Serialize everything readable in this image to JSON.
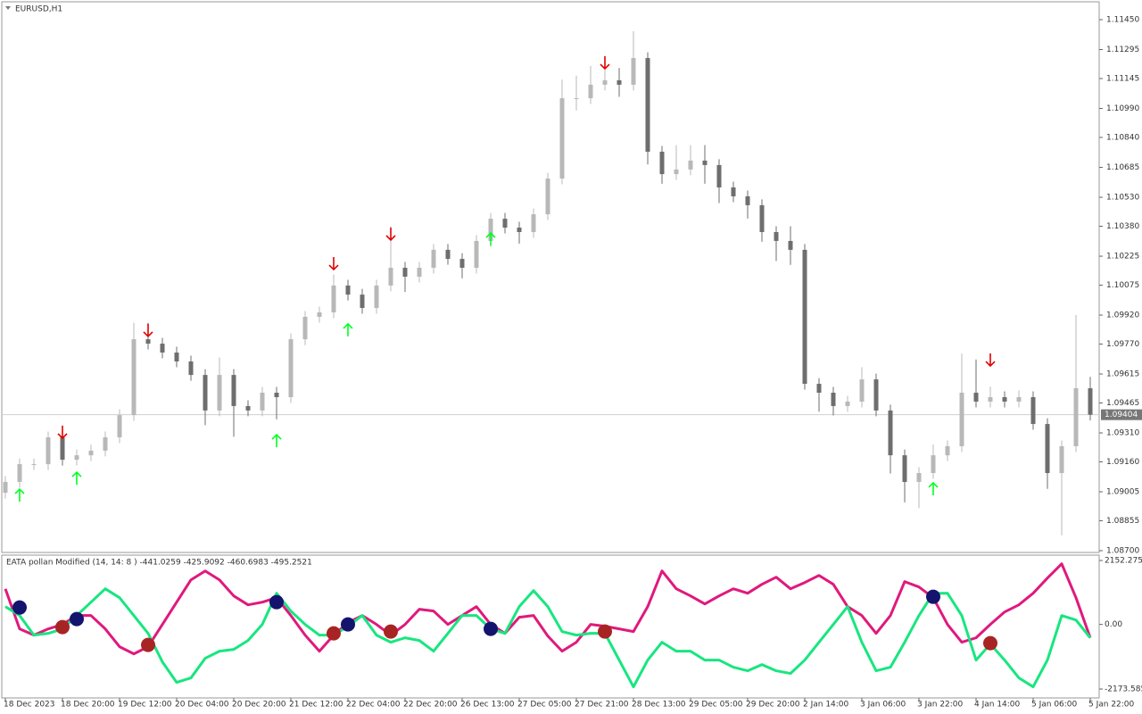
{
  "chart_data": [
    {
      "type": "candlestick",
      "title": "EURUSD,H1",
      "open": [
        1.09,
        1.09056,
        1.09148,
        1.09148,
        1.09287,
        1.09171,
        1.09194,
        1.09218,
        1.09287,
        1.09402,
        1.09795,
        1.09772,
        1.09726,
        1.0968,
        1.0961,
        1.09426,
        1.0961,
        1.09449,
        1.09426,
        1.09518,
        1.09495,
        1.09795,
        1.09911,
        1.09934,
        1.10073,
        1.10026,
        1.09957,
        1.10073,
        1.10165,
        1.10119,
        1.10165,
        1.10258,
        1.10211,
        1.10165,
        1.10304,
        1.10419,
        1.10373,
        1.1035,
        1.10442,
        1.10627,
        1.11043,
        1.11043,
        1.11113,
        1.11136,
        1.11113,
        1.11251,
        1.10766,
        1.1065,
        1.10674,
        1.1072,
        1.10697,
        1.10581,
        1.10535,
        1.10489,
        1.1035,
        1.10304,
        1.10258,
        1.09564,
        1.09518,
        1.09449,
        1.09472,
        1.09587,
        1.09426,
        1.09194,
        1.09056,
        1.09102,
        1.09194,
        1.09241,
        1.09518,
        1.09472,
        1.09495,
        1.09472,
        1.09495,
        1.09356,
        1.09102,
        1.09241,
        1.09541
      ],
      "high": [
        1.09086,
        1.09178,
        1.09178,
        1.09317,
        1.09317,
        1.09224,
        1.09248,
        1.09317,
        1.09432,
        1.0988,
        1.0988,
        1.09802,
        1.09756,
        1.0971,
        1.0964,
        1.097,
        1.0964,
        1.09479,
        1.09548,
        1.09548,
        1.09825,
        1.09941,
        1.09964,
        1.1013,
        1.10103,
        1.10056,
        1.10103,
        1.1038,
        1.10195,
        1.10195,
        1.10288,
        1.10288,
        1.10241,
        1.10334,
        1.10449,
        1.10449,
        1.10403,
        1.10472,
        1.10657,
        1.1114,
        1.1116,
        1.1121,
        1.1125,
        1.112,
        1.1139,
        1.11281,
        1.10796,
        1.108,
        1.108,
        1.108,
        1.10727,
        1.10611,
        1.10565,
        1.10519,
        1.1038,
        1.1038,
        1.10288,
        1.09594,
        1.09548,
        1.09502,
        1.0965,
        1.09617,
        1.09456,
        1.09224,
        1.09132,
        1.0925,
        1.09271,
        1.0972,
        1.0969,
        1.0955,
        1.09525,
        1.0953,
        1.09525,
        1.09386,
        1.09271,
        1.0992,
        1.096
      ],
      "low": [
        1.0897,
        1.09026,
        1.09118,
        1.09118,
        1.09141,
        1.09141,
        1.09164,
        1.09188,
        1.09257,
        1.09372,
        1.09742,
        1.09696,
        1.0965,
        1.0958,
        1.0935,
        1.09396,
        1.0929,
        1.09396,
        1.09396,
        1.0938,
        1.09465,
        1.09765,
        1.09881,
        1.09904,
        1.09996,
        1.09927,
        1.09927,
        1.10043,
        1.1004,
        1.10089,
        1.10135,
        1.10181,
        1.1011,
        1.10135,
        1.10274,
        1.10343,
        1.1029,
        1.1032,
        1.10412,
        1.10597,
        1.1098,
        1.11013,
        1.11083,
        1.1105,
        1.11083,
        1.107,
        1.106,
        1.1062,
        1.10644,
        1.106,
        1.105,
        1.10505,
        1.1042,
        1.103,
        1.102,
        1.1018,
        1.09534,
        1.0942,
        1.094,
        1.09419,
        1.09442,
        1.09396,
        1.091,
        1.0895,
        1.0892,
        1.09072,
        1.09164,
        1.09211,
        1.09442,
        1.09442,
        1.09442,
        1.09442,
        1.09326,
        1.0902,
        1.0878,
        1.09211,
        1.09374
      ],
      "close": [
        1.09056,
        1.09148,
        1.09148,
        1.09287,
        1.09171,
        1.09194,
        1.09218,
        1.09287,
        1.09402,
        1.09795,
        1.09772,
        1.09726,
        1.0968,
        1.0961,
        1.09426,
        1.0961,
        1.09449,
        1.09426,
        1.09518,
        1.09495,
        1.09795,
        1.09911,
        1.09934,
        1.10073,
        1.10026,
        1.09957,
        1.10073,
        1.10165,
        1.10119,
        1.10165,
        1.10258,
        1.10211,
        1.10165,
        1.10304,
        1.10419,
        1.10373,
        1.1035,
        1.10442,
        1.10627,
        1.11043,
        1.11043,
        1.11113,
        1.11136,
        1.11113,
        1.11251,
        1.10766,
        1.1065,
        1.10674,
        1.1072,
        1.10697,
        1.10581,
        1.10535,
        1.10489,
        1.1035,
        1.10304,
        1.10258,
        1.09564,
        1.09518,
        1.09449,
        1.09472,
        1.09587,
        1.09426,
        1.09194,
        1.09056,
        1.09102,
        1.09194,
        1.09241,
        1.09518,
        1.09472,
        1.09495,
        1.09472,
        1.09495,
        1.09356,
        1.09102,
        1.09241,
        1.09541,
        1.09404
      ],
      "up_color": "#b8b8b8",
      "down_color": "#6e6e6e",
      "ylim": [
        1.087,
        1.1145
      ],
      "yticks": [
        {
          "value": 1.1145,
          "label": "1.11450"
        },
        {
          "value": 1.11295,
          "label": "1.11295"
        },
        {
          "value": 1.11145,
          "label": "1.11145"
        },
        {
          "value": 1.1099,
          "label": "1.10990"
        },
        {
          "value": 1.1084,
          "label": "1.10840"
        },
        {
          "value": 1.10685,
          "label": "1.10685"
        },
        {
          "value": 1.1053,
          "label": "1.10530"
        },
        {
          "value": 1.1038,
          "label": "1.10380"
        },
        {
          "value": 1.10225,
          "label": "1.10225"
        },
        {
          "value": 1.10075,
          "label": "1.10075"
        },
        {
          "value": 1.0992,
          "label": "1.09920"
        },
        {
          "value": 1.0977,
          "label": "1.09770"
        },
        {
          "value": 1.09615,
          "label": "1.09615"
        },
        {
          "value": 1.09465,
          "label": "1.09465"
        },
        {
          "value": 1.0931,
          "label": "1.09310"
        },
        {
          "value": 1.0916,
          "label": "1.09160"
        },
        {
          "value": 1.09005,
          "label": "1.09005"
        },
        {
          "value": 1.08855,
          "label": "1.08855"
        },
        {
          "value": 1.087,
          "label": "1.08700"
        }
      ],
      "last_price": 1.09404,
      "up_arrows": {
        "color": "#00ff22",
        "index": [
          1,
          5,
          19,
          24,
          34,
          65
        ],
        "price": [
          1.08986,
          1.09074,
          1.09268,
          1.09842,
          1.10313,
          1.09019
        ]
      },
      "down_arrows": {
        "color": "#e00000",
        "index": [
          4,
          10,
          23,
          27,
          42,
          69
        ],
        "price": [
          1.09315,
          1.09842,
          1.10188,
          1.10341,
          1.11228,
          1.09689
        ]
      },
      "x_labels": [
        "18 Dec 2023",
        "18 Dec 20:00",
        "19 Dec 12:00",
        "20 Dec 04:00",
        "20 Dec 20:00",
        "21 Dec 12:00",
        "22 Dec 04:00",
        "22 Dec 20:00",
        "26 Dec 13:00",
        "27 Dec 05:00",
        "27 Dec 21:00",
        "28 Dec 13:00",
        "29 Dec 05:00",
        "29 Dec 20:00",
        "2 Jan 14:00",
        "3 Jan 06:00",
        "3 Jan 22:00",
        "4 Jan 14:00",
        "5 Jan 06:00",
        "5 Jan 22:00"
      ]
    },
    {
      "type": "line",
      "title": "EATA pollan Modified (14, 14: 8 ) -441.0259 -425.9092 -460.6983 -495.2521",
      "series": [
        {
          "color": "#e0197d",
          "values": [
            1200,
            -150,
            -360,
            -150,
            0,
            300,
            300,
            -150,
            -750,
            -990,
            -750,
            0,
            750,
            1500,
            1800,
            1500,
            960,
            660,
            750,
            900,
            300,
            -360,
            -900,
            -360,
            60,
            300,
            0,
            -360,
            0,
            510,
            450,
            0,
            300,
            600,
            0,
            -300,
            240,
            300,
            -390,
            -900,
            -600,
            0,
            -60,
            -150,
            -240,
            600,
            1800,
            1200,
            960,
            690,
            960,
            1200,
            1050,
            1350,
            1590,
            1200,
            1410,
            1650,
            1350,
            600,
            300,
            -300,
            300,
            1440,
            1260,
            900,
            0,
            -600,
            -450,
            0,
            420,
            660,
            1050,
            1560,
            2040,
            900,
            -450
          ]
        },
        {
          "color": "#17e67f",
          "values": [
            600,
            300,
            -360,
            -300,
            -150,
            300,
            750,
            1200,
            900,
            300,
            -300,
            -1260,
            -1950,
            -1800,
            -1140,
            -900,
            -840,
            -540,
            0,
            1050,
            450,
            0,
            -360,
            -360,
            -60,
            300,
            -360,
            -600,
            -450,
            -540,
            -900,
            -300,
            300,
            300,
            -150,
            -300,
            600,
            1140,
            600,
            -240,
            -360,
            -300,
            -300,
            -1200,
            -2100,
            -1200,
            -600,
            -900,
            -900,
            -1200,
            -1200,
            -1440,
            -1560,
            -1350,
            -1560,
            -1650,
            -1200,
            -600,
            0,
            600,
            -600,
            -1560,
            -1440,
            -600,
            300,
            1050,
            1050,
            300,
            -1200,
            -660,
            -1200,
            -1800,
            -2100,
            -1200,
            300,
            150,
            -450
          ]
        }
      ],
      "markers": [
        {
          "color": "#14146e",
          "index": [
            1,
            5,
            19,
            24,
            34,
            65
          ],
          "values": [
            570,
            180,
            750,
            0,
            -150,
            930
          ]
        },
        {
          "color": "#a82424",
          "index": [
            4,
            10,
            23,
            27,
            42,
            69
          ],
          "values": [
            -90,
            -690,
            -300,
            -240,
            -240,
            -630
          ]
        }
      ],
      "ylim": [
        -2173.585,
        2152.2751
      ],
      "yticks": [
        2152.2751,
        {
          "value": 0,
          "label": "0.00"
        },
        -2173.585
      ]
    }
  ]
}
